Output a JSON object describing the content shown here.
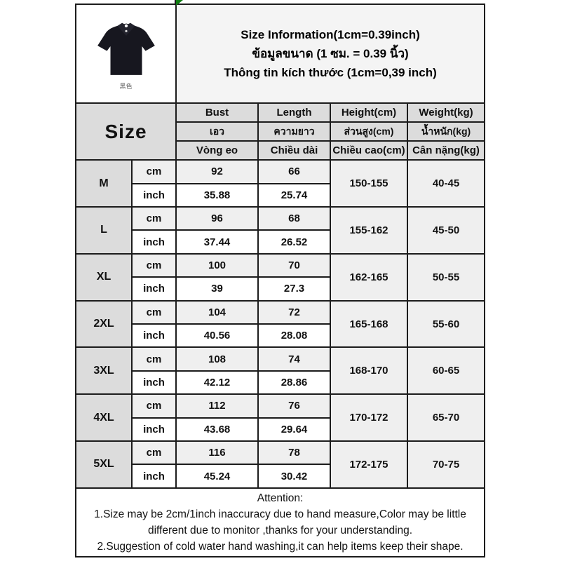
{
  "page": {
    "background": "#ffffff",
    "border_color": "#1c1c1c",
    "header_bg": "#dcdcdc",
    "band_bg": "#efefef",
    "title_bg": "#f4f4f4",
    "accent_artifact_color": "#0f7d11"
  },
  "header": {
    "product_image": "black-polo-shirt-photo",
    "product_image_caption": "黑色",
    "shirt_color": "#17171f",
    "title_lines": [
      "Size Information(1cm=0.39inch)",
      "ข้อมูลขนาด (1 ซม. = 0.39 นิ้ว)",
      "Thông tin kích thước (1cm=0,39 inch)"
    ]
  },
  "table": {
    "size_heading": "Size",
    "columns_en": [
      "Bust",
      "Length",
      "Height(cm)",
      "Weight(kg)"
    ],
    "columns_th": [
      "เอว",
      "ความยาว",
      "ส่วนสูง(cm)",
      "น้ำหนัก(kg)"
    ],
    "columns_vi": [
      "Vòng eo",
      "Chiều dài",
      "Chiều cao(cm)",
      "Cân nặng(kg)"
    ],
    "unit_labels": {
      "cm": "cm",
      "inch": "inch"
    },
    "rows": [
      {
        "size": "M",
        "bust_cm": "92",
        "length_cm": "66",
        "bust_inch": "35.88",
        "length_inch": "25.74",
        "height_cm": "150-155",
        "weight_kg": "40-45"
      },
      {
        "size": "L",
        "bust_cm": "96",
        "length_cm": "68",
        "bust_inch": "37.44",
        "length_inch": "26.52",
        "height_cm": "155-162",
        "weight_kg": "45-50"
      },
      {
        "size": "XL",
        "bust_cm": "100",
        "length_cm": "70",
        "bust_inch": "39",
        "length_inch": "27.3",
        "height_cm": "162-165",
        "weight_kg": "50-55"
      },
      {
        "size": "2XL",
        "bust_cm": "104",
        "length_cm": "72",
        "bust_inch": "40.56",
        "length_inch": "28.08",
        "height_cm": "165-168",
        "weight_kg": "55-60"
      },
      {
        "size": "3XL",
        "bust_cm": "108",
        "length_cm": "74",
        "bust_inch": "42.12",
        "length_inch": "28.86",
        "height_cm": "168-170",
        "weight_kg": "60-65"
      },
      {
        "size": "4XL",
        "bust_cm": "112",
        "length_cm": "76",
        "bust_inch": "43.68",
        "length_inch": "29.64",
        "height_cm": "170-172",
        "weight_kg": "65-70"
      },
      {
        "size": "5XL",
        "bust_cm": "116",
        "length_cm": "78",
        "bust_inch": "45.24",
        "length_inch": "30.42",
        "height_cm": "172-175",
        "weight_kg": "70-75"
      }
    ]
  },
  "attention": {
    "heading": "Attention:",
    "notes": [
      "1.Size may be 2cm/1inch inaccuracy due to hand measure,Color may be little different due to monitor ,thanks for your understanding.",
      "2.Suggestion of cold water hand washing,it can help items keep their shape."
    ]
  }
}
